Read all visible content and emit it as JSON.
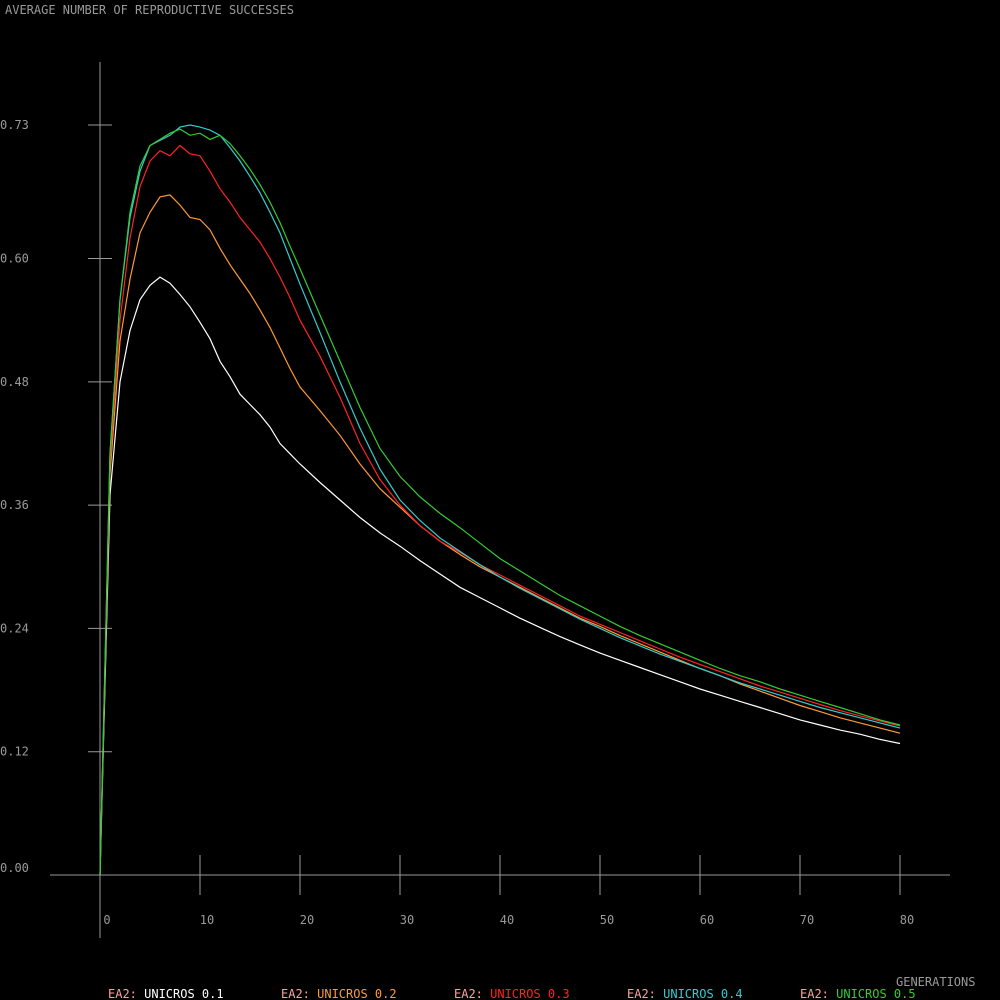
{
  "chart_data": {
    "type": "line",
    "title": "AVERAGE NUMBER OF REPRODUCTIVE SUCCESSES",
    "xlabel": "GENERATIONS",
    "ylabel": "",
    "xlim": [
      0,
      80
    ],
    "ylim": [
      0,
      0.73
    ],
    "x_ticks": [
      0,
      10,
      20,
      30,
      40,
      50,
      60,
      70,
      80
    ],
    "x_tick_labels": [
      "0",
      "10",
      "20",
      "30",
      "40",
      "50",
      "60",
      "70",
      "80"
    ],
    "y_ticks": [
      0.0,
      0.12,
      0.24,
      0.36,
      0.48,
      0.6,
      0.73
    ],
    "y_tick_labels": [
      "0.00",
      "0.12",
      "0.24",
      "0.36",
      "0.48",
      "0.60",
      "0.73"
    ],
    "grid": false,
    "legend_position": "bottom",
    "x": [
      0,
      1,
      2,
      3,
      4,
      5,
      6,
      7,
      8,
      9,
      10,
      11,
      12,
      13,
      14,
      15,
      16,
      17,
      18,
      19,
      20,
      22,
      24,
      26,
      28,
      30,
      32,
      34,
      36,
      38,
      40,
      42,
      44,
      46,
      48,
      50,
      52,
      54,
      56,
      58,
      60,
      62,
      64,
      66,
      68,
      70,
      72,
      74,
      76,
      78,
      80
    ],
    "series": [
      {
        "name": "EA2: UNICROS 0.1",
        "color": "#ffffff",
        "values": [
          0.0,
          0.37,
          0.48,
          0.53,
          0.56,
          0.574,
          0.582,
          0.576,
          0.565,
          0.553,
          0.538,
          0.522,
          0.5,
          0.485,
          0.468,
          0.458,
          0.448,
          0.436,
          0.42,
          0.41,
          0.4,
          0.382,
          0.365,
          0.348,
          0.333,
          0.32,
          0.306,
          0.293,
          0.28,
          0.27,
          0.26,
          0.25,
          0.241,
          0.232,
          0.224,
          0.216,
          0.209,
          0.202,
          0.195,
          0.188,
          0.181,
          0.175,
          0.169,
          0.163,
          0.157,
          0.151,
          0.146,
          0.141,
          0.137,
          0.132,
          0.128
        ]
      },
      {
        "name": "EA2: UNICROS 0.2",
        "color": "#ff9933",
        "values": [
          0.0,
          0.39,
          0.52,
          0.58,
          0.625,
          0.645,
          0.66,
          0.662,
          0.652,
          0.64,
          0.638,
          0.628,
          0.61,
          0.594,
          0.58,
          0.566,
          0.55,
          0.533,
          0.513,
          0.493,
          0.475,
          0.452,
          0.428,
          0.4,
          0.376,
          0.358,
          0.34,
          0.325,
          0.312,
          0.3,
          0.29,
          0.28,
          0.27,
          0.26,
          0.25,
          0.242,
          0.233,
          0.225,
          0.217,
          0.209,
          0.201,
          0.194,
          0.186,
          0.179,
          0.172,
          0.165,
          0.159,
          0.153,
          0.148,
          0.143,
          0.138
        ]
      },
      {
        "name": "EA2: UNICROS 0.3",
        "color": "#ff2222",
        "values": [
          0.0,
          0.4,
          0.54,
          0.62,
          0.67,
          0.695,
          0.705,
          0.7,
          0.71,
          0.702,
          0.7,
          0.685,
          0.668,
          0.655,
          0.64,
          0.628,
          0.616,
          0.6,
          0.582,
          0.562,
          0.54,
          0.505,
          0.465,
          0.42,
          0.385,
          0.36,
          0.34,
          0.325,
          0.314,
          0.302,
          0.292,
          0.282,
          0.272,
          0.262,
          0.252,
          0.244,
          0.236,
          0.228,
          0.22,
          0.212,
          0.205,
          0.198,
          0.191,
          0.184,
          0.178,
          0.172,
          0.166,
          0.16,
          0.155,
          0.15,
          0.145
        ]
      },
      {
        "name": "EA2: UNICROS 0.4",
        "color": "#33cccc",
        "values": [
          0.0,
          0.41,
          0.56,
          0.64,
          0.685,
          0.71,
          0.715,
          0.72,
          0.728,
          0.73,
          0.728,
          0.725,
          0.72,
          0.708,
          0.695,
          0.68,
          0.664,
          0.645,
          0.625,
          0.6,
          0.575,
          0.528,
          0.48,
          0.435,
          0.395,
          0.365,
          0.345,
          0.328,
          0.315,
          0.302,
          0.29,
          0.279,
          0.269,
          0.259,
          0.249,
          0.24,
          0.231,
          0.223,
          0.215,
          0.208,
          0.201,
          0.194,
          0.187,
          0.181,
          0.175,
          0.169,
          0.163,
          0.158,
          0.153,
          0.148,
          0.143
        ]
      },
      {
        "name": "EA2: UNICROS 0.5",
        "color": "#33cc33",
        "values": [
          0.0,
          0.41,
          0.56,
          0.645,
          0.69,
          0.71,
          0.716,
          0.722,
          0.726,
          0.72,
          0.722,
          0.716,
          0.72,
          0.712,
          0.7,
          0.687,
          0.672,
          0.655,
          0.635,
          0.612,
          0.59,
          0.545,
          0.5,
          0.455,
          0.415,
          0.388,
          0.368,
          0.352,
          0.338,
          0.323,
          0.308,
          0.296,
          0.284,
          0.272,
          0.262,
          0.252,
          0.242,
          0.233,
          0.225,
          0.217,
          0.209,
          0.201,
          0.194,
          0.188,
          0.181,
          0.175,
          0.169,
          0.163,
          0.157,
          0.151,
          0.146
        ]
      }
    ]
  }
}
